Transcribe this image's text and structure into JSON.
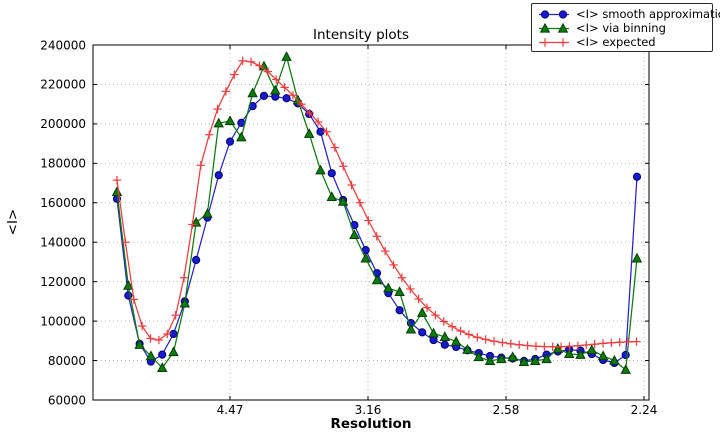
{
  "figure": {
    "title": "Intensity plots",
    "xlabel": "Resolution",
    "ylabel": "<I>"
  },
  "legend": {
    "position": "upper right",
    "items": [
      {
        "label": "<I> smooth approximation",
        "series": "smooth"
      },
      {
        "label": "<I> via binning",
        "series": "binning"
      },
      {
        "label": "<I> expected",
        "series": "expected"
      }
    ]
  },
  "chart_data": {
    "type": "line",
    "title": "Intensity plots",
    "xlabel": "Resolution",
    "ylabel": "<I>",
    "grid": true,
    "legend_position": "upper right",
    "x_axis": {
      "encoding": "axis linear in 1/d^2, labels are resolution d",
      "range_s2": [
        0.0,
        0.2018
      ],
      "ticks": [
        {
          "s2": 0.05,
          "label": "4.47"
        },
        {
          "s2": 0.1,
          "label": "3.16"
        },
        {
          "s2": 0.15,
          "label": "2.58"
        },
        {
          "s2": 0.2,
          "label": "2.24"
        }
      ]
    },
    "y_axis": {
      "min": 60000,
      "max": 240000,
      "step": 20000
    },
    "series": [
      {
        "id": "smooth",
        "name": "<I> smooth approximation",
        "marker": "circle",
        "color": "#2424cc",
        "fill": "#1a1acd",
        "edge": "#00007a",
        "x0_s2": 0.009058,
        "dx_s2": 0.0040958,
        "values": [
          162000,
          113000,
          88500,
          79500,
          83000,
          93500,
          110000,
          131000,
          152500,
          174000,
          191000,
          200500,
          209000,
          214200,
          213800,
          213000,
          210400,
          205000,
          196000,
          175000,
          161400,
          148700,
          136000,
          124300,
          114200,
          105500,
          99000,
          94300,
          90400,
          88000,
          86900,
          85200,
          83800,
          82300,
          81500,
          81000,
          79800,
          80800,
          83000,
          84600,
          85600,
          85000,
          83300,
          80300,
          78800,
          82800,
          173200
        ]
      },
      {
        "id": "binning",
        "name": "<I> via binning",
        "marker": "triangle",
        "color": "#0c7c0c",
        "fill": "#0c7c0c",
        "edge": "#043c04",
        "x0_s2": 0.009058,
        "dx_s2": 0.0040958,
        "values": [
          165500,
          118000,
          88000,
          82300,
          76300,
          84300,
          109000,
          150000,
          154500,
          200300,
          201500,
          193200,
          215600,
          229200,
          217000,
          234000,
          212000,
          195000,
          176500,
          163000,
          160600,
          143700,
          131800,
          120800,
          116700,
          114800,
          95800,
          104200,
          93800,
          92000,
          89600,
          85500,
          81800,
          79800,
          80800,
          81800,
          79300,
          79800,
          80800,
          86000,
          83400,
          82900,
          85400,
          82300,
          80000,
          75300,
          131800
        ]
      },
      {
        "id": "expected",
        "name": "<I> expected",
        "marker": "plus",
        "color": "#f03c3c",
        "fill": "#f03c3c",
        "edge": "#f03c3c",
        "x0_s2": 0.009058,
        "dx_s2": 0.0030359,
        "values": [
          171500,
          140000,
          111000,
          97500,
          91200,
          90400,
          93500,
          103000,
          122000,
          149000,
          179000,
          194500,
          207500,
          216500,
          225000,
          232000,
          231500,
          229500,
          226500,
          222500,
          218500,
          214500,
          210000,
          205500,
          201000,
          196000,
          188000,
          178500,
          169000,
          160000,
          151000,
          143000,
          135500,
          128500,
          122000,
          116300,
          111200,
          106800,
          103000,
          99800,
          97200,
          95000,
          93200,
          91800,
          90700,
          89800,
          89100,
          88500,
          88000,
          87600,
          87300,
          87100,
          87000,
          87000,
          87200,
          87500,
          87900,
          88300,
          88700,
          89000,
          89300,
          89500,
          89600
        ]
      }
    ]
  }
}
